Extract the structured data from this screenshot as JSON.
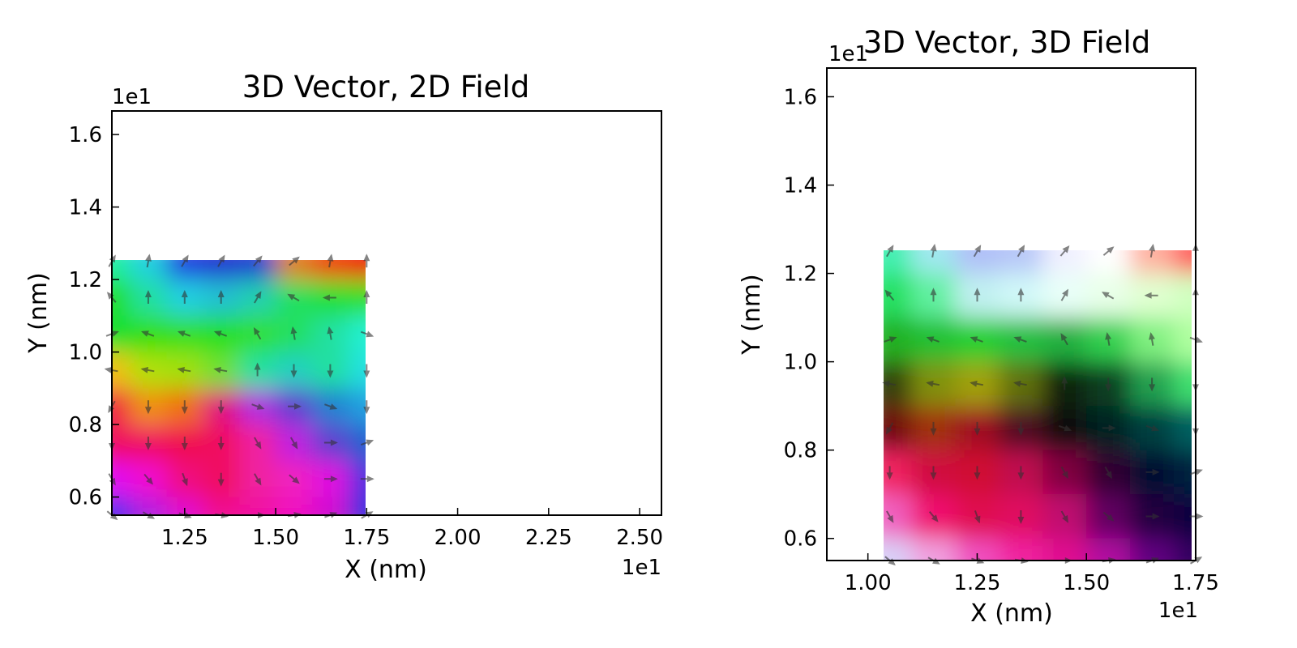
{
  "chart_data": [
    {
      "type": "heatmap",
      "title": "3D Vector, 2D Field",
      "xlabel": "X (nm)",
      "ylabel": "Y (nm)",
      "x_multiplier": "1e1",
      "y_multiplier": "1e1",
      "xlim": [
        1.05,
        2.56
      ],
      "ylim": [
        0.55,
        1.665
      ],
      "xticks": [
        "1.25",
        "1.50",
        "1.75",
        "2.00",
        "2.25",
        "2.50"
      ],
      "yticks": [
        "0.6",
        "0.8",
        "1.0",
        "1.2",
        "1.4",
        "1.6"
      ],
      "field_extent": {
        "x": [
          1.05,
          1.75
        ],
        "y": [
          0.55,
          1.25
        ]
      },
      "arrow_color": "#333333",
      "grid": false,
      "x": [
        1.05,
        1.15,
        1.25,
        1.35,
        1.45,
        1.55,
        1.65,
        1.75
      ],
      "y": [
        1.25,
        1.15,
        1.05,
        0.95,
        0.85,
        0.75,
        0.65,
        0.55
      ],
      "colors": [
        [
          "#20f0a0",
          "#20d0e0",
          "#2040e0",
          "#2030d0",
          "#2040d0",
          "#e08020",
          "#f04010",
          "#f01010"
        ],
        [
          "#20e020",
          "#20e0a0",
          "#20d0e0",
          "#20c0d0",
          "#20d0b0",
          "#20e060",
          "#20e030",
          "#30e020"
        ],
        [
          "#10e030",
          "#30e010",
          "#30e020",
          "#20e020",
          "#30e030",
          "#20e060",
          "#20e0a0",
          "#20f0d0"
        ],
        [
          "#f0c010",
          "#b0e010",
          "#a0e010",
          "#70e030",
          "#20e0a0",
          "#20d0c0",
          "#20e0a0",
          "#20e0e0"
        ],
        [
          "#f02040",
          "#f09010",
          "#f07010",
          "#e01080",
          "#b030e0",
          "#6040d0",
          "#2080d0",
          "#20a0e0"
        ],
        [
          "#f01060",
          "#f01060",
          "#f01050",
          "#f01060",
          "#f020a0",
          "#c020e0",
          "#6040d0",
          "#2060d0"
        ],
        [
          "#e010f0",
          "#f010d0",
          "#f01080",
          "#f01060",
          "#f020a0",
          "#f020c0",
          "#e010e0",
          "#5030e0"
        ],
        [
          "#5030f0",
          "#b020e0",
          "#e010d0",
          "#f01090",
          "#f010a0",
          "#f010c0",
          "#d010d0",
          "#3030e0"
        ]
      ],
      "arrows_deg": [
        [
          60,
          80,
          60,
          60,
          50,
          40,
          80,
          90
        ],
        [
          130,
          90,
          90,
          90,
          60,
          150,
          180,
          90
        ],
        [
          20,
          160,
          160,
          160,
          120,
          100,
          100,
          340
        ],
        [
          170,
          170,
          170,
          170,
          90,
          270,
          270,
          270
        ],
        [
          240,
          270,
          270,
          270,
          340,
          0,
          340,
          270
        ],
        [
          270,
          270,
          270,
          270,
          300,
          300,
          0,
          20
        ],
        [
          300,
          310,
          290,
          270,
          300,
          320,
          0,
          0
        ],
        [
          320,
          330,
          340,
          350,
          0,
          10,
          20,
          30
        ]
      ]
    },
    {
      "type": "heatmap",
      "title": "3D Vector, 3D Field",
      "xlabel": "X (nm)",
      "ylabel": "Y (nm)",
      "x_multiplier": "1e1",
      "y_multiplier": "1e1",
      "xlim": [
        0.906,
        1.75
      ],
      "ylim": [
        0.55,
        1.665
      ],
      "xticks": [
        "1.00",
        "1.25",
        "1.50",
        "1.75"
      ],
      "yticks": [
        "0.6",
        "0.8",
        "1.0",
        "1.2",
        "1.4",
        "1.6"
      ],
      "field_extent": {
        "x": [
          1.05,
          1.75
        ],
        "y": [
          0.55,
          1.25
        ]
      },
      "arrow_color": "#333333",
      "grid": false,
      "x": [
        1.05,
        1.15,
        1.25,
        1.35,
        1.45,
        1.55,
        1.65,
        1.75
      ],
      "y": [
        1.25,
        1.15,
        1.05,
        0.95,
        0.85,
        0.75,
        0.65,
        0.55
      ],
      "colors": [
        [
          "#40f0b0",
          "#a0e8f0",
          "#b0c0f8",
          "#b8c8f8",
          "#f0f0ff",
          "#ffffff",
          "#ffb0a0",
          "#ff6060"
        ],
        [
          "#20e060",
          "#60f0a0",
          "#c0f0f0",
          "#d0f8f8",
          "#e8fff8",
          "#e8ffe8",
          "#e0ffd0",
          "#d0ffc0"
        ],
        [
          "#20b020",
          "#20c030",
          "#20d030",
          "#20c040",
          "#20b040",
          "#30d050",
          "#80f080",
          "#b0ffa0"
        ],
        [
          "#304010",
          "#809010",
          "#a0a010",
          "#607010",
          "#102010",
          "#104020",
          "#20a050",
          "#40e070"
        ],
        [
          "#701010",
          "#a03010",
          "#a01020",
          "#501020",
          "#100810",
          "#002020",
          "#004040",
          "#006060"
        ],
        [
          "#f02060",
          "#d01040",
          "#d01030",
          "#c01050",
          "#800040",
          "#300030",
          "#001030",
          "#002040"
        ],
        [
          "#f060c0",
          "#f01070",
          "#e01050",
          "#e01060",
          "#c01070",
          "#600060",
          "#200040",
          "#100040"
        ],
        [
          "#d8d0f8",
          "#f0a0e0",
          "#f050c0",
          "#f020a0",
          "#e01090",
          "#b010a0",
          "#600080",
          "#300060"
        ]
      ],
      "arrows_deg": [
        [
          60,
          80,
          60,
          60,
          50,
          40,
          80,
          90
        ],
        [
          130,
          90,
          90,
          90,
          60,
          150,
          180,
          90
        ],
        [
          20,
          160,
          160,
          160,
          120,
          100,
          100,
          340
        ],
        [
          170,
          170,
          170,
          170,
          90,
          270,
          270,
          270
        ],
        [
          240,
          270,
          270,
          270,
          340,
          0,
          340,
          270
        ],
        [
          270,
          270,
          270,
          270,
          300,
          300,
          0,
          20
        ],
        [
          300,
          310,
          290,
          270,
          300,
          320,
          0,
          0
        ],
        [
          320,
          330,
          340,
          350,
          0,
          10,
          20,
          30
        ]
      ]
    }
  ]
}
